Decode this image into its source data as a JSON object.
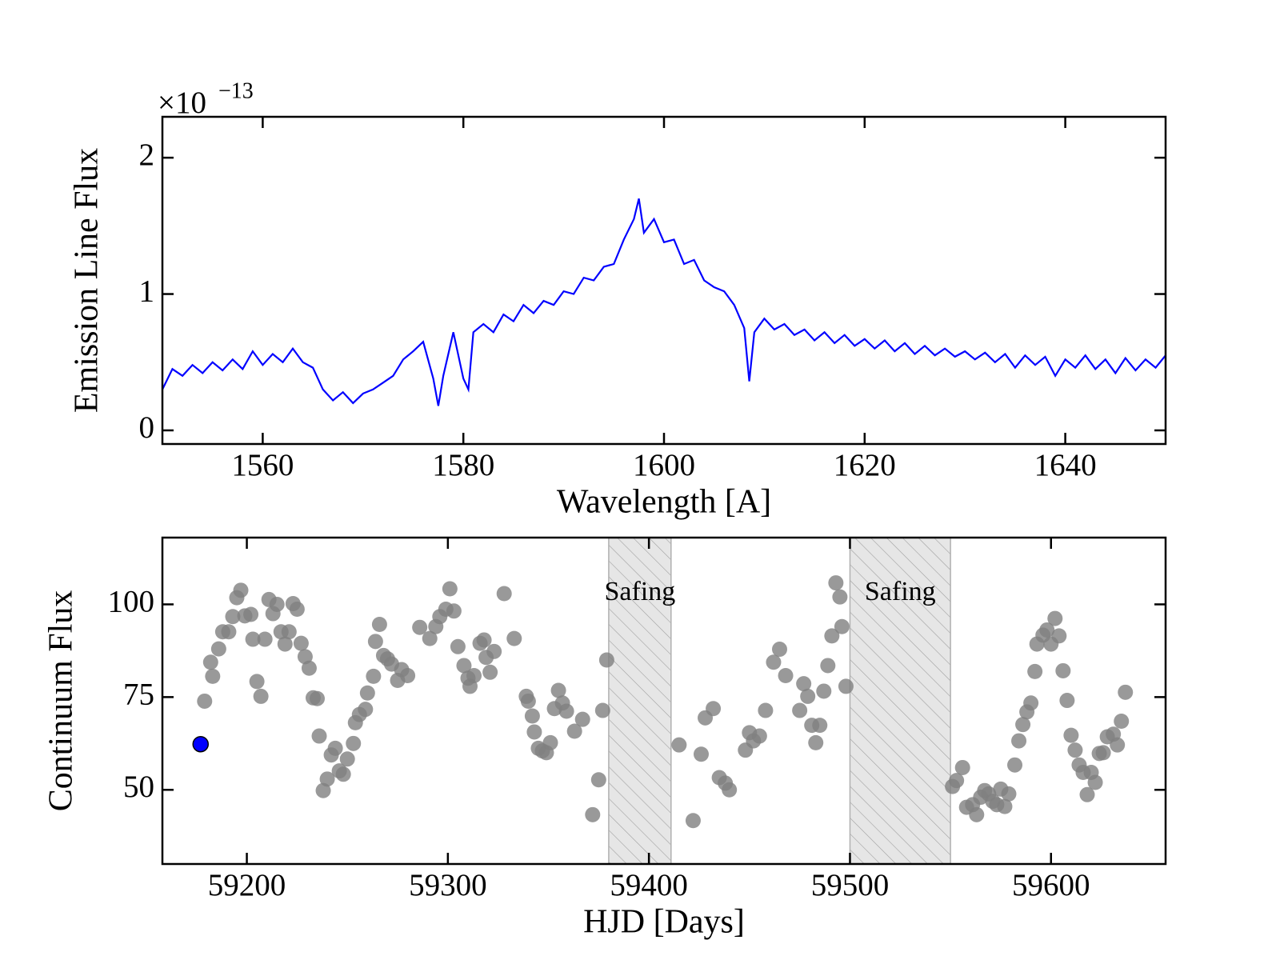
{
  "chart_data": [
    {
      "type": "line",
      "y_label": "Emission Line Flux",
      "x_label": "Wavelength [A]",
      "y_multiplier_base": "×10",
      "y_multiplier_exponent": "−13",
      "color": "#0000ff",
      "x": [
        1550,
        1551,
        1552,
        1553,
        1554,
        1555,
        1556,
        1557,
        1558,
        1559,
        1560,
        1561,
        1562,
        1563,
        1564,
        1565,
        1566,
        1567,
        1568,
        1569,
        1570,
        1571,
        1572,
        1573,
        1574,
        1575,
        1576,
        1577,
        1577.5,
        1578,
        1579,
        1580,
        1580.5,
        1581,
        1582,
        1583,
        1584,
        1585,
        1586,
        1587,
        1588,
        1589,
        1590,
        1591,
        1592,
        1593,
        1594,
        1595,
        1596,
        1597,
        1597.5,
        1598,
        1599,
        1600,
        1601,
        1602,
        1603,
        1604,
        1605,
        1606,
        1607,
        1608,
        1608.5,
        1609,
        1610,
        1611,
        1612,
        1613,
        1614,
        1615,
        1616,
        1617,
        1618,
        1619,
        1620,
        1621,
        1622,
        1623,
        1624,
        1625,
        1626,
        1627,
        1628,
        1629,
        1630,
        1631,
        1632,
        1633,
        1634,
        1635,
        1636,
        1637,
        1638,
        1639,
        1640,
        1641,
        1642,
        1643,
        1644,
        1645,
        1646,
        1647,
        1648,
        1649,
        1650
      ],
      "values": [
        0.3,
        0.45,
        0.4,
        0.48,
        0.42,
        0.5,
        0.44,
        0.52,
        0.45,
        0.58,
        0.48,
        0.56,
        0.5,
        0.6,
        0.5,
        0.46,
        0.3,
        0.22,
        0.28,
        0.2,
        0.27,
        0.3,
        0.35,
        0.4,
        0.52,
        0.58,
        0.65,
        0.38,
        0.18,
        0.4,
        0.72,
        0.38,
        0.3,
        0.72,
        0.78,
        0.72,
        0.85,
        0.8,
        0.92,
        0.86,
        0.95,
        0.92,
        1.02,
        1.0,
        1.12,
        1.1,
        1.2,
        1.22,
        1.4,
        1.55,
        1.7,
        1.45,
        1.55,
        1.38,
        1.4,
        1.22,
        1.25,
        1.1,
        1.05,
        1.02,
        0.92,
        0.75,
        0.36,
        0.72,
        0.82,
        0.74,
        0.78,
        0.7,
        0.74,
        0.66,
        0.72,
        0.64,
        0.7,
        0.62,
        0.67,
        0.6,
        0.66,
        0.58,
        0.64,
        0.56,
        0.62,
        0.55,
        0.6,
        0.54,
        0.58,
        0.52,
        0.57,
        0.5,
        0.56,
        0.46,
        0.55,
        0.48,
        0.54,
        0.4,
        0.52,
        0.46,
        0.55,
        0.45,
        0.52,
        0.42,
        0.53,
        0.44,
        0.52,
        0.46,
        0.55
      ],
      "xlim": [
        1550,
        1650
      ],
      "xticks": [
        1560,
        1580,
        1600,
        1620,
        1640
      ],
      "ylim": [
        -0.1,
        2.3
      ],
      "yticks": [
        0,
        1,
        2
      ]
    },
    {
      "type": "scatter",
      "y_label": "Continuum Flux",
      "x_label": "HJD [Days]",
      "color": "#808080",
      "x": [
        59179,
        59182,
        59183,
        59186,
        59188,
        59191,
        59193,
        59195,
        59197,
        59199,
        59202,
        59203,
        59205,
        59207,
        59209,
        59211,
        59213,
        59215,
        59217,
        59219,
        59221,
        59223,
        59225,
        59227,
        59229,
        59231,
        59233,
        59235,
        59236,
        59238,
        59240,
        59242,
        59244,
        59246,
        59248,
        59250,
        59253,
        59254,
        59256,
        59259,
        59260,
        59263,
        59264,
        59266,
        59268,
        59270,
        59272,
        59275,
        59277,
        59280,
        59286,
        59291,
        59294,
        59296,
        59299,
        59301,
        59303,
        59305,
        59308,
        59310,
        59311,
        59313,
        59316,
        59318,
        59319,
        59321,
        59323,
        59328,
        59333,
        59339,
        59340,
        59342,
        59343,
        59345,
        59347,
        59349,
        59351,
        59353,
        59355,
        59357,
        59359,
        59363,
        59367,
        59372,
        59375,
        59377,
        59379,
        59415,
        59422,
        59426,
        59428,
        59432,
        59435,
        59438,
        59440,
        59448,
        59450,
        59452,
        59455,
        59458,
        59462,
        59465,
        59468,
        59475,
        59477,
        59479,
        59481,
        59483,
        59485,
        59487,
        59489,
        59491,
        59493,
        59495,
        59496,
        59498,
        59551,
        59553,
        59556,
        59558,
        59561,
        59563,
        59565,
        59567,
        59569,
        59571,
        59573,
        59575,
        59577,
        59579,
        59582,
        59584,
        59586,
        59588,
        59590,
        59592,
        59593,
        59596,
        59598,
        59600,
        59602,
        59604,
        59606,
        59608,
        59610,
        59612,
        59614,
        59616,
        59618,
        59620,
        59622,
        59624,
        59626,
        59628,
        59631,
        59633,
        59635,
        59637
      ],
      "values": [
        73.9,
        84.4,
        80.6,
        88,
        92.6,
        92.6,
        96.7,
        101.8,
        103.8,
        96.9,
        97.3,
        90.6,
        79.2,
        75.2,
        90.6,
        101.3,
        97.5,
        100,
        92.6,
        89.3,
        92.6,
        100.2,
        98.7,
        89.5,
        85.9,
        82.8,
        74.8,
        74.6,
        64.5,
        49.8,
        52.9,
        59.4,
        61.2,
        55.1,
        54.2,
        58.3,
        62.5,
        68.1,
        70.3,
        71.7,
        76.1,
        80.6,
        90,
        94.6,
        86.2,
        85.3,
        83.9,
        79.5,
        82.4,
        80.8,
        93.8,
        90.8,
        94,
        96.7,
        98.7,
        104.2,
        98.2,
        88.6,
        83.5,
        80.1,
        77.9,
        80.8,
        89.5,
        90.4,
        85.7,
        81.7,
        87.3,
        102.9,
        90.8,
        75.2,
        73.9,
        69.9,
        65.6,
        61.2,
        60.5,
        60,
        62.7,
        71.9,
        76.8,
        73.4,
        71.2,
        65.8,
        69,
        43.3,
        52.7,
        71.4,
        85,
        62.1,
        41.7,
        59.6,
        69.4,
        71.9,
        53.3,
        51.8,
        50,
        60.7,
        65.4,
        63.2,
        64.5,
        71.4,
        84.4,
        87.9,
        80.8,
        71.4,
        78.6,
        75.2,
        67.4,
        62.7,
        67.4,
        76.6,
        83.5,
        91.5,
        105.8,
        102,
        94,
        77.9,
        50.9,
        52.5,
        56,
        45.3,
        46,
        43.3,
        48,
        49.8,
        48.9,
        46.9,
        46,
        50.2,
        45.5,
        48.9,
        56.7,
        63.2,
        67.6,
        71,
        73.4,
        81.9,
        89.3,
        91.7,
        93.1,
        89.3,
        96.2,
        91.5,
        82.1,
        74.1,
        64.7,
        60.7,
        56.7,
        54.7,
        48.7,
        54.7,
        52,
        59.8,
        60,
        64.3,
        65,
        62.1,
        68.5,
        76.3
      ],
      "highlight_x": 59177,
      "highlight_value": 62.3,
      "highlight_color": "#0000ff",
      "spans": [
        {
          "x": [
            59380,
            59411
          ],
          "label": "Safing"
        },
        {
          "x": [
            59500,
            59550
          ],
          "label": "Safing"
        }
      ],
      "xlim": [
        59158,
        59657
      ],
      "xticks": [
        59200,
        59300,
        59400,
        59500,
        59600
      ],
      "ylim": [
        30,
        118
      ],
      "yticks": [
        50,
        75,
        100
      ]
    }
  ]
}
